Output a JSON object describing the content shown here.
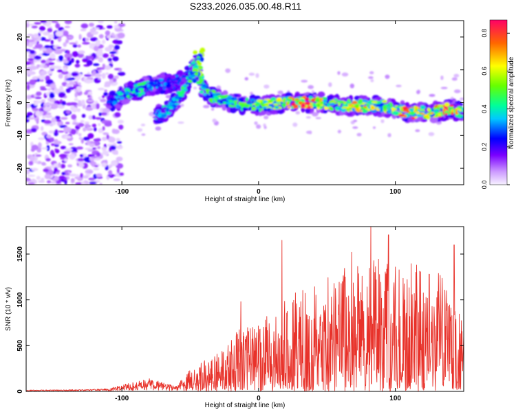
{
  "title": "S233.2026.035.00.48.R11",
  "colors": {
    "signal": "#e8322a",
    "frame": "#000000"
  },
  "chart_data": [
    {
      "type": "heatmap",
      "xlabel": "Height of straight line (km)",
      "ylabel": "Frequency (Hz)",
      "xlim": [
        -170,
        150
      ],
      "ylim": [
        -25,
        25
      ],
      "x_ticks": [
        -100,
        0,
        100
      ],
      "y_ticks": [
        -20,
        -10,
        0,
        10,
        20
      ],
      "ridge": [
        {
          "x": -165,
          "y": 0,
          "a": 0.12
        },
        {
          "x": -140,
          "y": 0,
          "a": 0.15
        },
        {
          "x": -120,
          "y": -1,
          "a": 0.18
        },
        {
          "x": -110,
          "y": 0,
          "a": 0.25
        },
        {
          "x": -95,
          "y": 3,
          "a": 0.45
        },
        {
          "x": -80,
          "y": 5,
          "a": 0.4
        },
        {
          "x": -65,
          "y": 6,
          "a": 0.25
        },
        {
          "x": -55,
          "y": 7,
          "a": 0.3
        },
        {
          "x": -45,
          "y": 12,
          "a": 0.45
        },
        {
          "x": -42,
          "y": 5,
          "a": 0.5
        },
        {
          "x": -35,
          "y": 2,
          "a": 0.45
        },
        {
          "x": -20,
          "y": 0,
          "a": 0.45
        },
        {
          "x": 0,
          "y": -1,
          "a": 0.55
        },
        {
          "x": 20,
          "y": 0,
          "a": 0.6
        },
        {
          "x": 30,
          "y": 0,
          "a": 0.85
        },
        {
          "x": 45,
          "y": 0,
          "a": 0.6
        },
        {
          "x": 60,
          "y": -1,
          "a": 0.6
        },
        {
          "x": 75,
          "y": -1,
          "a": 0.7
        },
        {
          "x": 90,
          "y": -1,
          "a": 0.55
        },
        {
          "x": 110,
          "y": -3,
          "a": 0.8
        },
        {
          "x": 125,
          "y": -3,
          "a": 0.6
        },
        {
          "x": 140,
          "y": -2,
          "a": 0.85
        },
        {
          "x": 150,
          "y": -3,
          "a": 0.55
        }
      ],
      "branch": [
        {
          "x": -75,
          "y": -4,
          "a": 0.35
        },
        {
          "x": -65,
          "y": -2,
          "a": 0.4
        },
        {
          "x": -58,
          "y": 2,
          "a": 0.45
        },
        {
          "x": -52,
          "y": 6,
          "a": 0.5
        },
        {
          "x": -48,
          "y": 9,
          "a": 0.45
        }
      ],
      "colorbar": {
        "label": "Normalized spectral amplitude",
        "ticks": [
          0.0,
          0.2,
          0.4,
          0.6,
          0.8
        ],
        "tick_labels": [
          "0.0",
          "0.2",
          "0.4",
          "0.6",
          "0.8"
        ],
        "range": [
          0,
          0.87
        ]
      }
    },
    {
      "type": "line",
      "xlabel": "Height of straight line (km)",
      "ylabel": "SNR (10 * v/v)",
      "xlim": [
        -170,
        150
      ],
      "ylim": [
        0,
        1800
      ],
      "x_ticks": [
        -100,
        0,
        100
      ],
      "y_ticks": [
        0,
        500,
        1000,
        1500
      ],
      "envelope": [
        {
          "x": -170,
          "y": 15
        },
        {
          "x": -130,
          "y": 20
        },
        {
          "x": -110,
          "y": 30
        },
        {
          "x": -95,
          "y": 90
        },
        {
          "x": -80,
          "y": 140
        },
        {
          "x": -70,
          "y": 100
        },
        {
          "x": -60,
          "y": 60
        },
        {
          "x": -50,
          "y": 250
        },
        {
          "x": -40,
          "y": 350
        },
        {
          "x": -25,
          "y": 450
        },
        {
          "x": -15,
          "y": 700
        },
        {
          "x": 0,
          "y": 750
        },
        {
          "x": 15,
          "y": 1000
        },
        {
          "x": 30,
          "y": 1100
        },
        {
          "x": 50,
          "y": 1250
        },
        {
          "x": 70,
          "y": 1400
        },
        {
          "x": 85,
          "y": 1500
        },
        {
          "x": 100,
          "y": 1450
        },
        {
          "x": 115,
          "y": 1400
        },
        {
          "x": 130,
          "y": 1350
        },
        {
          "x": 145,
          "y": 1100
        },
        {
          "x": 150,
          "y": 700
        }
      ],
      "peaks": [
        {
          "x": -13,
          "y": 980
        },
        {
          "x": 17,
          "y": 1650
        },
        {
          "x": 68,
          "y": 1520
        },
        {
          "x": 82,
          "y": 1800
        },
        {
          "x": 95,
          "y": 1710
        },
        {
          "x": 143,
          "y": 1600
        }
      ]
    }
  ]
}
